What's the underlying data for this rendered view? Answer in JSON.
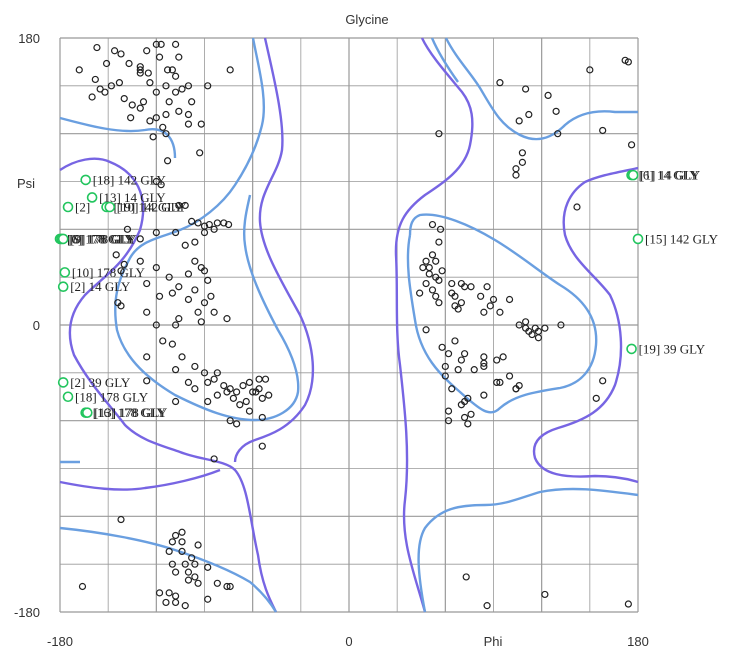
{
  "chart_data": {
    "type": "scatter",
    "title": "Glycine",
    "xlabel": "Phi",
    "ylabel": "Psi",
    "xlim": [
      -180,
      180
    ],
    "ylim": [
      -180,
      180
    ],
    "x_ticks": [
      -180,
      0,
      180
    ],
    "y_ticks": [
      -180,
      0,
      180
    ],
    "grid": true,
    "colors": {
      "favored_contour": "#6a9fe0",
      "allowed_contour": "#7765e3",
      "normal_point": "#222222",
      "outlier_point": "#22c55e",
      "grid": "#999999"
    },
    "points": [
      [
        -157,
        174
      ],
      [
        -151,
        164
      ],
      [
        -146,
        172
      ],
      [
        -168,
        160
      ],
      [
        -158,
        154
      ],
      [
        -155,
        148
      ],
      [
        -148,
        150
      ],
      [
        -143,
        152
      ],
      [
        -152,
        146
      ],
      [
        -160,
        143
      ],
      [
        -137,
        164
      ],
      [
        -140,
        142
      ],
      [
        -130,
        162
      ],
      [
        -125,
        158
      ],
      [
        -118,
        168
      ],
      [
        -110,
        160
      ],
      [
        -114,
        150
      ],
      [
        -108,
        146
      ],
      [
        -120,
        146
      ],
      [
        -104,
        148
      ],
      [
        -112,
        140
      ],
      [
        -120,
        130
      ],
      [
        -106,
        134
      ],
      [
        -114,
        132
      ],
      [
        -100,
        132
      ],
      [
        -124,
        128
      ],
      [
        -130,
        136
      ],
      [
        -135,
        138
      ],
      [
        -128,
        140
      ],
      [
        -116,
        124
      ],
      [
        -100,
        126
      ],
      [
        -92,
        126
      ],
      [
        -98,
        140
      ],
      [
        -88,
        150
      ],
      [
        -100,
        150
      ],
      [
        -124,
        152
      ],
      [
        -130,
        160
      ],
      [
        -113,
        160
      ],
      [
        -108,
        156
      ],
      [
        -126,
        172
      ],
      [
        -120,
        176
      ],
      [
        -117,
        176
      ],
      [
        -106,
        168
      ],
      [
        -108,
        176
      ],
      [
        -142,
        170
      ],
      [
        -130,
        158
      ],
      [
        -136,
        130
      ],
      [
        -122,
        118
      ],
      [
        -114,
        120
      ],
      [
        -74,
        160
      ],
      [
        -93,
        108
      ],
      [
        -113,
        103
      ],
      [
        -120,
        90
      ],
      [
        -117,
        88
      ],
      [
        -106,
        75
      ],
      [
        -102,
        75
      ],
      [
        -98,
        65
      ],
      [
        -94,
        64
      ],
      [
        -90,
        62
      ],
      [
        -87,
        63
      ],
      [
        -82,
        64
      ],
      [
        -78,
        64
      ],
      [
        -75,
        63
      ],
      [
        -84,
        60
      ],
      [
        -90,
        58
      ],
      [
        -96,
        52
      ],
      [
        -102,
        50
      ],
      [
        -108,
        58
      ],
      [
        -120,
        58
      ],
      [
        -130,
        54
      ],
      [
        -138,
        60
      ],
      [
        -145,
        44
      ],
      [
        -140,
        38
      ],
      [
        -120,
        36
      ],
      [
        -112,
        30
      ],
      [
        -100,
        32
      ],
      [
        -96,
        40
      ],
      [
        -92,
        36
      ],
      [
        -90,
        34
      ],
      [
        -88,
        28
      ],
      [
        -110,
        20
      ],
      [
        -118,
        18
      ],
      [
        -106,
        24
      ],
      [
        -96,
        22
      ],
      [
        -86,
        18
      ],
      [
        -90,
        14
      ],
      [
        -100,
        16
      ],
      [
        -126,
        26
      ],
      [
        -130,
        40
      ],
      [
        -142,
        34
      ],
      [
        -144,
        14
      ],
      [
        -142,
        12
      ],
      [
        -126,
        8
      ],
      [
        -120,
        0
      ],
      [
        -108,
        0
      ],
      [
        -106,
        4
      ],
      [
        -92,
        2
      ],
      [
        -94,
        8
      ],
      [
        -84,
        8
      ],
      [
        -76,
        4
      ],
      [
        -110,
        -12
      ],
      [
        -104,
        -20
      ],
      [
        -96,
        -26
      ],
      [
        -90,
        -30
      ],
      [
        -84,
        -34
      ],
      [
        -78,
        -38
      ],
      [
        -74,
        -40
      ],
      [
        -70,
        -42
      ],
      [
        -66,
        -38
      ],
      [
        -62,
        -36
      ],
      [
        -56,
        -34
      ],
      [
        -52,
        -34
      ],
      [
        -58,
        -42
      ],
      [
        -64,
        -48
      ],
      [
        -68,
        -50
      ],
      [
        -72,
        -46
      ],
      [
        -76,
        -42
      ],
      [
        -82,
        -44
      ],
      [
        -88,
        -48
      ],
      [
        -96,
        -40
      ],
      [
        -108,
        -48
      ],
      [
        -74,
        -60
      ],
      [
        -70,
        -62
      ],
      [
        -54,
        -46
      ],
      [
        -50,
        -44
      ],
      [
        -62,
        -54
      ],
      [
        -82,
        -30
      ],
      [
        -108,
        -28
      ],
      [
        -126,
        -20
      ],
      [
        -116,
        -10
      ],
      [
        -100,
        -36
      ],
      [
        -60,
        -42
      ],
      [
        -56,
        -40
      ],
      [
        -54,
        -58
      ],
      [
        -54,
        -76
      ],
      [
        -84,
        -84
      ],
      [
        -88,
        -36
      ],
      [
        -126,
        -35
      ],
      [
        -142,
        -122
      ],
      [
        -108,
        -132
      ],
      [
        -102,
        -150
      ],
      [
        -104,
        -142
      ],
      [
        -110,
        -136
      ],
      [
        -104,
        -130
      ],
      [
        -98,
        -146
      ],
      [
        -96,
        -150
      ],
      [
        -100,
        -155
      ],
      [
        -96,
        -158
      ],
      [
        -94,
        -162
      ],
      [
        -100,
        -160
      ],
      [
        -108,
        -155
      ],
      [
        -110,
        -150
      ],
      [
        -118,
        -168
      ],
      [
        -112,
        -168
      ],
      [
        -108,
        -170
      ],
      [
        -114,
        -174
      ],
      [
        -108,
        -174
      ],
      [
        -102,
        -176
      ],
      [
        -88,
        -172
      ],
      [
        -82,
        -162
      ],
      [
        -76,
        -164
      ],
      [
        -74,
        -164
      ],
      [
        -166,
        -164
      ],
      [
        -94,
        -138
      ],
      [
        -112,
        -142
      ],
      [
        -104,
        -136
      ],
      [
        -88,
        -152
      ],
      [
        56,
        120
      ],
      [
        94,
        152
      ],
      [
        110,
        148
      ],
      [
        112,
        132
      ],
      [
        106,
        128
      ],
      [
        124,
        144
      ],
      [
        130,
        120
      ],
      [
        129,
        134
      ],
      [
        150,
        160
      ],
      [
        158,
        122
      ],
      [
        172,
        166
      ],
      [
        174,
        165
      ],
      [
        176,
        113
      ],
      [
        108,
        108
      ],
      [
        108,
        102
      ],
      [
        104,
        98
      ],
      [
        104,
        94
      ],
      [
        142,
        74
      ],
      [
        52,
        63
      ],
      [
        57,
        60
      ],
      [
        56,
        52
      ],
      [
        52,
        44
      ],
      [
        54,
        40
      ],
      [
        50,
        36
      ],
      [
        48,
        40
      ],
      [
        46,
        36
      ],
      [
        50,
        32
      ],
      [
        54,
        30
      ],
      [
        56,
        28
      ],
      [
        58,
        34
      ],
      [
        48,
        26
      ],
      [
        52,
        22
      ],
      [
        44,
        20
      ],
      [
        54,
        18
      ],
      [
        64,
        26
      ],
      [
        70,
        26
      ],
      [
        64,
        20
      ],
      [
        66,
        18
      ],
      [
        70,
        14
      ],
      [
        84,
        8
      ],
      [
        82,
        18
      ],
      [
        88,
        12
      ],
      [
        66,
        12
      ],
      [
        68,
        10
      ],
      [
        56,
        14
      ],
      [
        72,
        24
      ],
      [
        76,
        24
      ],
      [
        86,
        24
      ],
      [
        90,
        16
      ],
      [
        100,
        16
      ],
      [
        94,
        8
      ],
      [
        106,
        0
      ],
      [
        110,
        -2
      ],
      [
        112,
        -4
      ],
      [
        116,
        -2
      ],
      [
        114,
        -6
      ],
      [
        118,
        -4
      ],
      [
        118,
        -8
      ],
      [
        122,
        -2
      ],
      [
        110,
        2
      ],
      [
        132,
        0
      ],
      [
        58,
        -14
      ],
      [
        62,
        -18
      ],
      [
        72,
        -18
      ],
      [
        70,
        -22
      ],
      [
        84,
        -24
      ],
      [
        94,
        -36
      ],
      [
        104,
        -40
      ],
      [
        60,
        -26
      ],
      [
        78,
        -28
      ],
      [
        104,
        -40
      ],
      [
        158,
        -35
      ],
      [
        154,
        -46
      ],
      [
        84,
        -26
      ],
      [
        106,
        -38
      ],
      [
        72,
        -58
      ],
      [
        62,
        -60
      ],
      [
        74,
        -62
      ],
      [
        84,
        -44
      ],
      [
        68,
        -28
      ],
      [
        76,
        -56
      ],
      [
        70,
        -50
      ],
      [
        60,
        -32
      ],
      [
        62,
        -54
      ],
      [
        72,
        -48
      ],
      [
        100,
        -32
      ],
      [
        74,
        -46
      ],
      [
        84,
        -20
      ],
      [
        92,
        -22
      ],
      [
        92,
        -36
      ],
      [
        96,
        -20
      ],
      [
        66,
        -10
      ],
      [
        64,
        -40
      ],
      [
        48,
        -3
      ],
      [
        73,
        -158
      ],
      [
        86,
        -176
      ],
      [
        122,
        -169
      ],
      [
        174,
        -175
      ]
    ],
    "outliers": [
      {
        "phi": -164,
        "psi": 91,
        "label": "[18]  142 GLY"
      },
      {
        "phi": -160,
        "psi": 80,
        "label": "[13]   14 GLY"
      },
      {
        "phi": -175,
        "psi": 74,
        "label": "[2]  "
      },
      {
        "phi": -151,
        "psi": 74,
        "label": "[19]  142 GLY"
      },
      {
        "phi": -149,
        "psi": 74,
        "label": "[10]  14 GLY"
      },
      {
        "phi": -180,
        "psi": 54,
        "label": "[6]   178 GLY"
      },
      {
        "phi": -179,
        "psi": 54,
        "label": "[8]   178 GLY"
      },
      {
        "phi": -178,
        "psi": 54,
        "label": "[9]   178 GLY"
      },
      {
        "phi": -177,
        "psi": 33,
        "label": "[10]  178 GLY"
      },
      {
        "phi": -178,
        "psi": 24,
        "label": "[2]    14 GLY"
      },
      {
        "phi": -178,
        "psi": -36,
        "label": "[2]   39 GLY"
      },
      {
        "phi": -175,
        "psi": -45,
        "label": "[18]  178 GLY"
      },
      {
        "phi": -164,
        "psi": -55,
        "label": "[16]  178 GLY"
      },
      {
        "phi": -163,
        "psi": -55,
        "label": "[13]  178 GLY"
      },
      {
        "phi": 176,
        "psi": 94,
        "label": "[6]   14 GLY"
      },
      {
        "phi": 177,
        "psi": 94,
        "label": "[1]   14 GLY"
      },
      {
        "phi": 180,
        "psi": 54,
        "label": "[15]  142 GLY"
      },
      {
        "phi": 176,
        "psi": -15,
        "label": "[19]   39 GLY"
      }
    ]
  }
}
